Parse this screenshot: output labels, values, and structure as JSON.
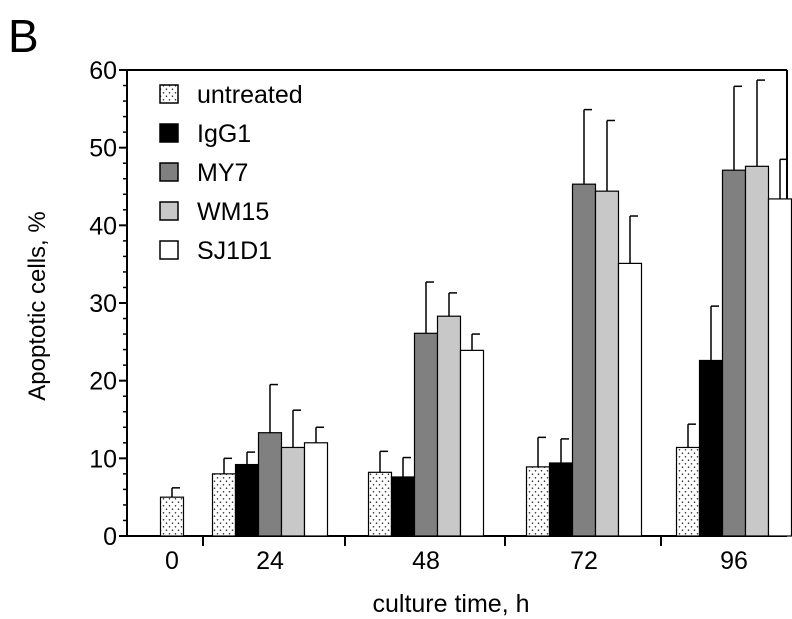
{
  "panel_label": "B",
  "chart_data": {
    "type": "bar",
    "xlabel": "culture time, h",
    "ylabel": "Apoptotic cells, %",
    "ylim": [
      0,
      60
    ],
    "yticks": [
      0,
      10,
      20,
      30,
      40,
      50,
      60
    ],
    "grid": false,
    "legend_position": "top-left",
    "categories": [
      "0",
      "24",
      "48",
      "72",
      "96"
    ],
    "series": [
      {
        "name": "untreated",
        "fill": "dots",
        "color": "#ffffff",
        "values": [
          5.0,
          8.0,
          8.2,
          8.9,
          11.4
        ],
        "errors": [
          1.2,
          2.0,
          2.7,
          3.8,
          3.0
        ]
      },
      {
        "name": "IgG1",
        "fill": "solid",
        "color": "#000000",
        "values": [
          null,
          9.2,
          7.6,
          9.4,
          22.6
        ],
        "errors": [
          null,
          1.6,
          2.5,
          3.1,
          7.0
        ]
      },
      {
        "name": "MY7",
        "fill": "solid",
        "color": "#808080",
        "values": [
          null,
          13.3,
          26.1,
          45.3,
          47.1
        ],
        "errors": [
          null,
          6.2,
          6.6,
          9.6,
          10.8
        ]
      },
      {
        "name": "WM15",
        "fill": "solid",
        "color": "#c8c8c8",
        "values": [
          null,
          11.4,
          28.3,
          44.4,
          47.6
        ],
        "errors": [
          null,
          4.8,
          3.0,
          9.1,
          11.1
        ]
      },
      {
        "name": "SJ1D1",
        "fill": "solid",
        "color": "#ffffff",
        "values": [
          null,
          12.0,
          23.9,
          35.1,
          43.4
        ],
        "errors": [
          null,
          2.0,
          2.1,
          6.1,
          5.1
        ]
      }
    ]
  }
}
